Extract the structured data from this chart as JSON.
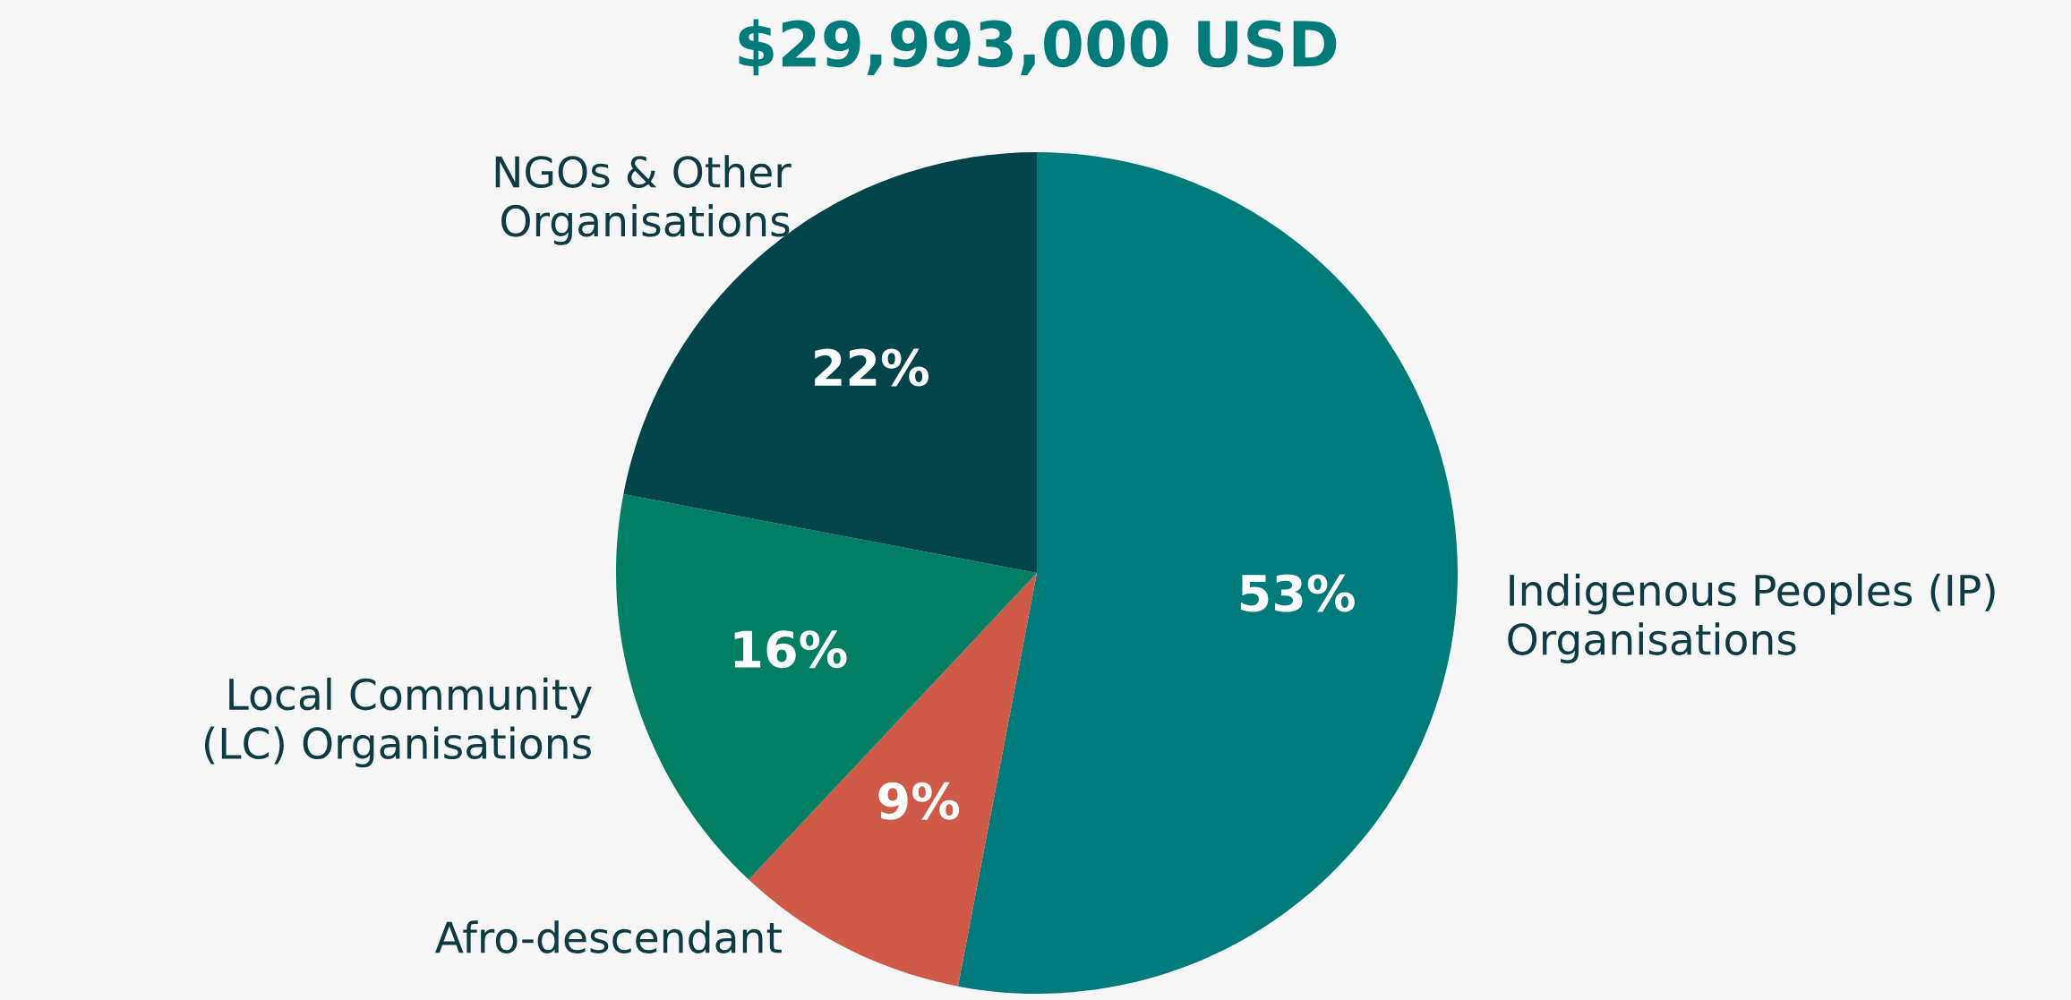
{
  "chart_data": {
    "type": "pie",
    "title": "$29,993,000 USD",
    "categories": [
      "Indigenous Peoples (IP)\nOrganisations",
      "Afro-descendant",
      "Local Community\n(LC) Organisations",
      "NGOs & Other\nOrganisations"
    ],
    "values": [
      53,
      9,
      16,
      22
    ],
    "colors": [
      "#017a7c",
      "#cf5a47",
      "#027e62",
      "#03444b"
    ],
    "value_labels": [
      "53%",
      "9%",
      "16%",
      "22%"
    ],
    "legend": false
  }
}
